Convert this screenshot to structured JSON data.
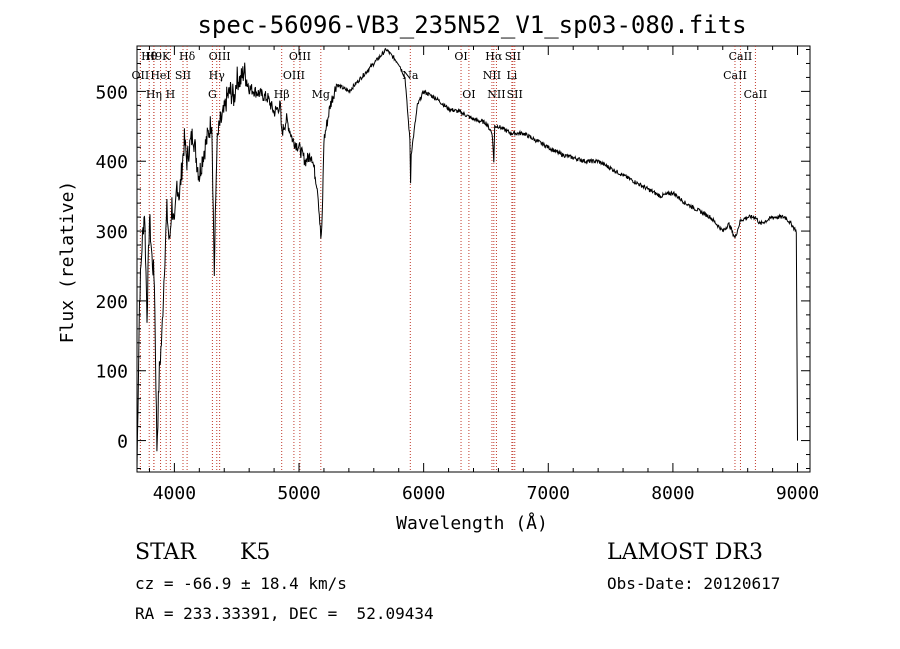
{
  "chart_data": {
    "type": "line",
    "title": "spec-56096-VB3_235N52_V1_sp03-080.fits",
    "xlabel": "Wavelength (Å)",
    "ylabel": "Flux (relative)",
    "xlim": [
      3700,
      9100
    ],
    "ylim": [
      -45,
      565
    ],
    "x_ticks": [
      4000,
      5000,
      6000,
      7000,
      8000,
      9000
    ],
    "y_ticks": [
      0,
      100,
      200,
      300,
      400,
      500
    ],
    "grid": false,
    "series": [
      {
        "name": "flux",
        "x": [
          3700,
          3720,
          3740,
          3760,
          3780,
          3800,
          3820,
          3840,
          3860,
          3880,
          3900,
          3920,
          3940,
          3960,
          3980,
          4000,
          4020,
          4040,
          4060,
          4080,
          4100,
          4120,
          4150,
          4180,
          4200,
          4230,
          4260,
          4300,
          4320,
          4340,
          4360,
          4400,
          4420,
          4450,
          4480,
          4500,
          4530,
          4560,
          4600,
          4650,
          4700,
          4750,
          4800,
          4850,
          4861,
          4900,
          4950,
          5000,
          5050,
          5100,
          5150,
          5175,
          5183,
          5190,
          5200,
          5250,
          5300,
          5400,
          5500,
          5600,
          5700,
          5800,
          5850,
          5890,
          5895,
          5900,
          5950,
          6000,
          6100,
          6200,
          6300,
          6400,
          6500,
          6550,
          6563,
          6570,
          6600,
          6700,
          6800,
          6900,
          7000,
          7100,
          7200,
          7300,
          7400,
          7500,
          7600,
          7700,
          7800,
          7900,
          8000,
          8100,
          8200,
          8300,
          8400,
          8450,
          8498,
          8542,
          8600,
          8662,
          8700,
          8800,
          8900,
          8950,
          8990,
          9000
        ],
        "y": [
          -40,
          200,
          280,
          330,
          180,
          320,
          260,
          230,
          -10,
          100,
          150,
          250,
          330,
          280,
          340,
          300,
          370,
          350,
          390,
          430,
          400,
          420,
          440,
          400,
          380,
          410,
          430,
          460,
          240,
          420,
          450,
          470,
          490,
          500,
          490,
          520,
          515,
          530,
          505,
          500,
          495,
          490,
          470,
          480,
          440,
          460,
          430,
          420,
          400,
          410,
          360,
          290,
          300,
          350,
          430,
          480,
          510,
          500,
          520,
          540,
          560,
          540,
          520,
          430,
          370,
          410,
          480,
          500,
          490,
          475,
          470,
          460,
          455,
          440,
          400,
          450,
          450,
          440,
          440,
          430,
          420,
          410,
          405,
          400,
          400,
          390,
          380,
          370,
          360,
          350,
          355,
          340,
          330,
          320,
          300,
          310,
          290,
          315,
          320,
          320,
          310,
          320,
          320,
          310,
          300,
          0
        ]
      }
    ],
    "line_markers": [
      {
        "label": "Hθ",
        "x": 3798,
        "row": 0
      },
      {
        "label": "H9",
        "x": 3835,
        "row": 0
      },
      {
        "label": "K",
        "x": 3934,
        "row": 0
      },
      {
        "label": "Hδ",
        "x": 4102,
        "row": 0
      },
      {
        "label": "OII",
        "x": 3727,
        "row": 1
      },
      {
        "label": "HeI",
        "x": 3889,
        "row": 1
      },
      {
        "label": "SII",
        "x": 4069,
        "row": 1
      },
      {
        "label": "Hη",
        "x": 3836,
        "row": 2
      },
      {
        "label": "H",
        "x": 3968,
        "row": 2
      },
      {
        "label": "OIII",
        "x": 4363,
        "row": 0
      },
      {
        "label": "Hγ",
        "x": 4340,
        "row": 1
      },
      {
        "label": "G",
        "x": 4305,
        "row": 2
      },
      {
        "label": "OIII",
        "x": 5007,
        "row": 0
      },
      {
        "label": "OIII",
        "x": 4959,
        "row": 1
      },
      {
        "label": "Hβ",
        "x": 4861,
        "row": 2
      },
      {
        "label": "Mg",
        "x": 5175,
        "row": 2
      },
      {
        "label": "Na",
        "x": 5893,
        "row": 1
      },
      {
        "label": "OI",
        "x": 6300,
        "row": 0
      },
      {
        "label": "OI",
        "x": 6363,
        "row": 2
      },
      {
        "label": "Hα",
        "x": 6563,
        "row": 0
      },
      {
        "label": "SII",
        "x": 6716,
        "row": 0
      },
      {
        "label": "NII",
        "x": 6548,
        "row": 1
      },
      {
        "label": "Li",
        "x": 6708,
        "row": 1
      },
      {
        "label": "NII",
        "x": 6584,
        "row": 2
      },
      {
        "label": "SII",
        "x": 6731,
        "row": 2
      },
      {
        "label": "CaII",
        "x": 8542,
        "row": 0
      },
      {
        "label": "CaII",
        "x": 8498,
        "row": 1
      },
      {
        "label": "CaII",
        "x": 8662,
        "row": 2
      }
    ],
    "marker_color": "#c0392b"
  },
  "info": {
    "class_label": "STAR",
    "subclass": "K5",
    "survey": "LAMOST DR3",
    "cz": "cz = -66.9 ± 18.4 km/s",
    "obs_date": "Obs-Date: 20120617",
    "coords": "RA = 233.33391, DEC =  52.09434"
  }
}
